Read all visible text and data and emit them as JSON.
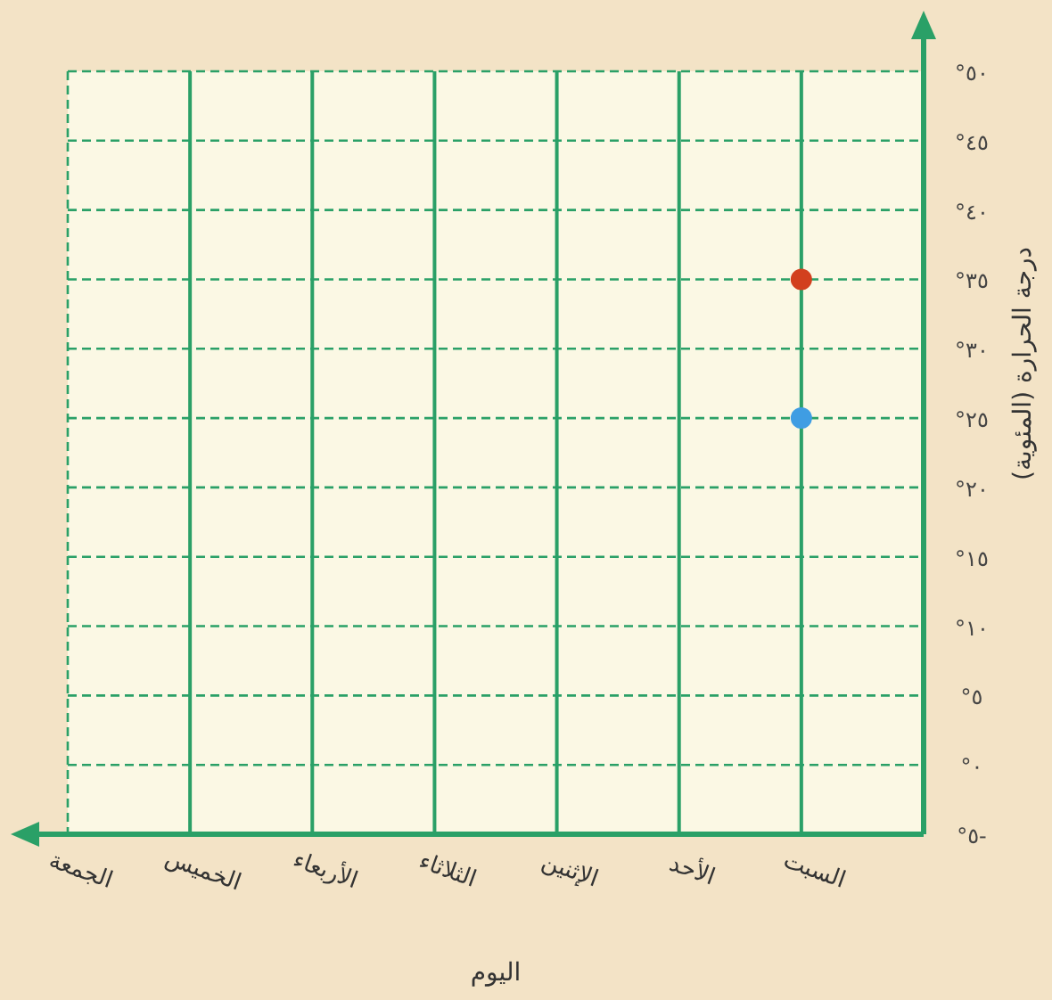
{
  "chart_data": {
    "type": "scatter",
    "xlabel": "اليوم",
    "ylabel": "درجة الحرارة (المئوية)",
    "categories": [
      "الجمعة",
      "الخميس",
      "الأربعاء",
      "الثلاثاء",
      "الإثنين",
      "الأحد",
      "السبت"
    ],
    "series": [
      {
        "color": "#d2401e",
        "values": [
          null,
          null,
          null,
          null,
          null,
          null,
          35
        ]
      },
      {
        "color": "#3f9de3",
        "values": [
          null,
          null,
          null,
          null,
          null,
          null,
          25
        ]
      }
    ],
    "ylim": [
      -5,
      50
    ],
    "yticks": [
      {
        "value": 50,
        "label": "٥٠°"
      },
      {
        "value": 45,
        "label": "٤٥°"
      },
      {
        "value": 40,
        "label": "٤٠°"
      },
      {
        "value": 35,
        "label": "٣٥°"
      },
      {
        "value": 30,
        "label": "٣٠°"
      },
      {
        "value": 25,
        "label": "٢٥°"
      },
      {
        "value": 20,
        "label": "٢٠°"
      },
      {
        "value": 15,
        "label": "١٥°"
      },
      {
        "value": 10,
        "label": "١٠°"
      },
      {
        "value": 5,
        "label": "٥°"
      },
      {
        "value": 0,
        "label": "٠°"
      },
      {
        "value": -5,
        "label": "-٥°"
      }
    ],
    "grid": true,
    "marker": "circle"
  }
}
